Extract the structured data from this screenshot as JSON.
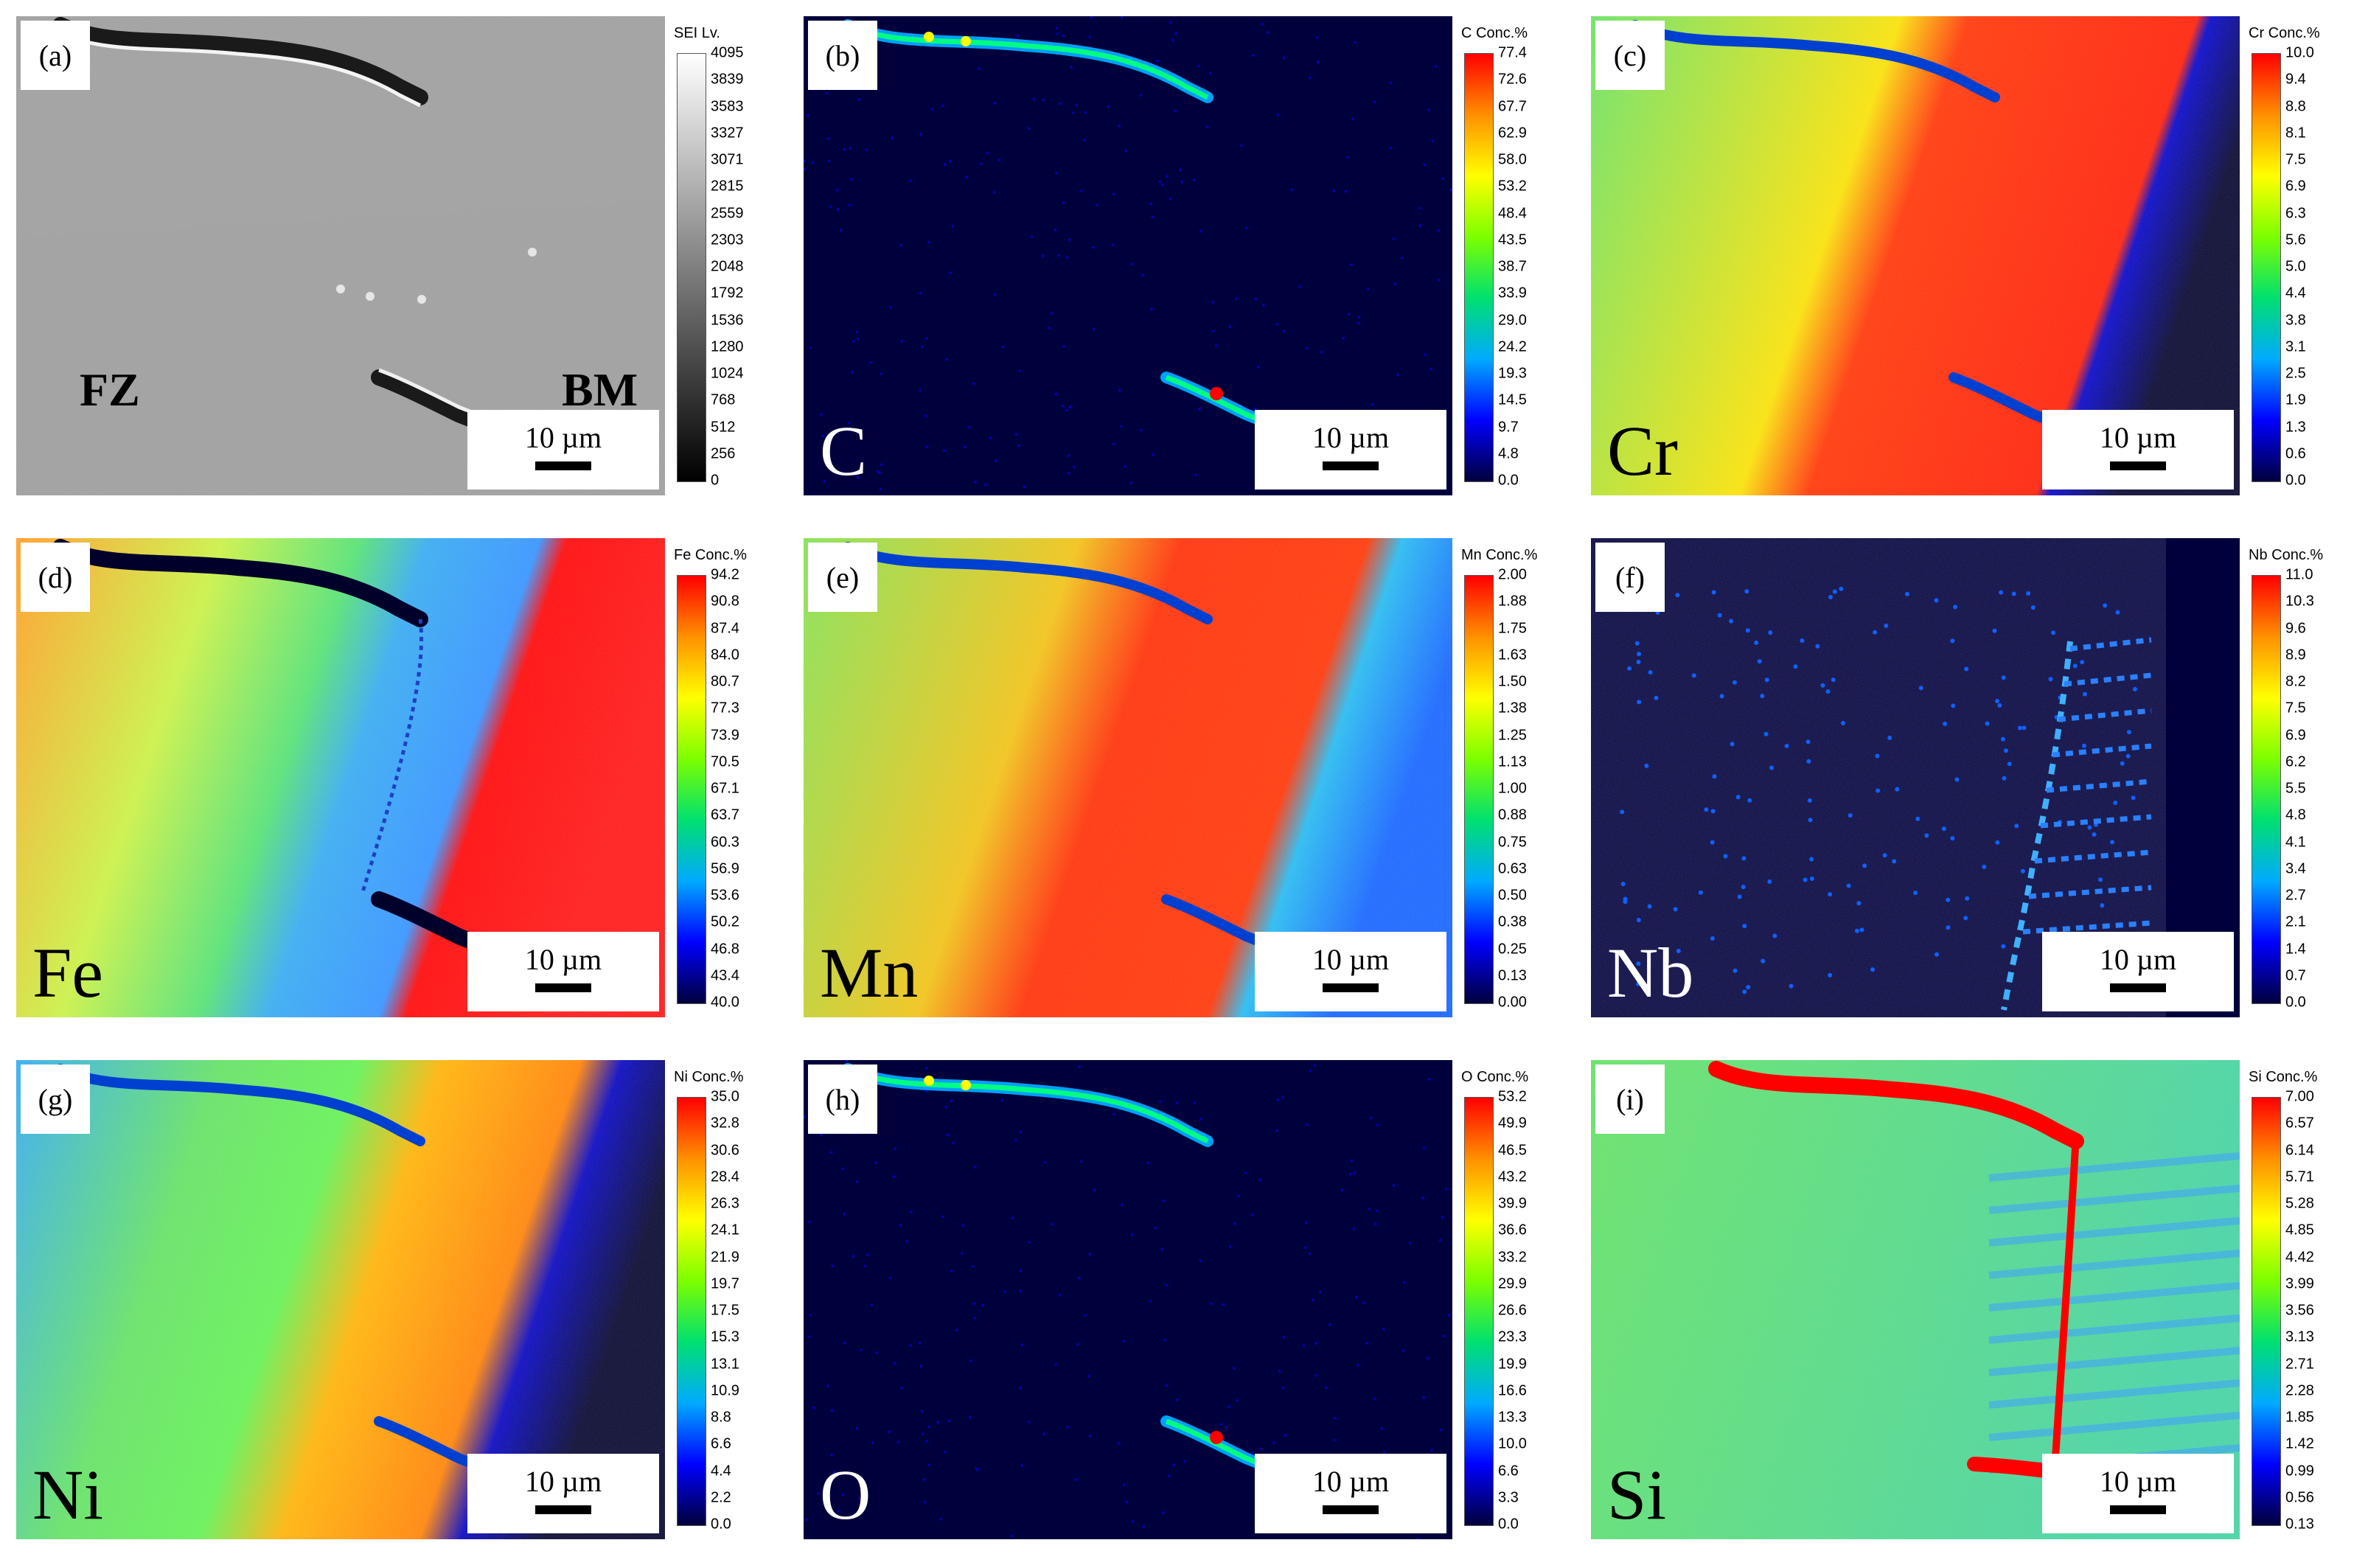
{
  "scale_label": "10 µm",
  "colormap": [
    "#00003c",
    "#0000ff",
    "#00aaff",
    "#00e070",
    "#7cff00",
    "#ffff00",
    "#ff9000",
    "#ff0000"
  ],
  "panels": [
    {
      "tag": "(a)",
      "element": "",
      "zones": [
        "FZ",
        "BM"
      ],
      "legend_title": "SEI  Lv.",
      "ticks": [
        "4095",
        "3839",
        "3583",
        "3327",
        "3071",
        "2815",
        "2559",
        "2303",
        "2048",
        "1792",
        "1536",
        "1280",
        "1024",
        "768",
        "512",
        "256",
        "0"
      ]
    },
    {
      "tag": "(b)",
      "element": "C",
      "legend_title": "C  Conc.%",
      "ticks": [
        "77.4",
        "72.6",
        "67.7",
        "62.9",
        "58.0",
        "53.2",
        "48.4",
        "43.5",
        "38.7",
        "33.9",
        "29.0",
        "24.2",
        "19.3",
        "14.5",
        "9.7",
        "4.8",
        "0.0"
      ]
    },
    {
      "tag": "(c)",
      "element": "Cr",
      "legend_title": "Cr  Conc.%",
      "ticks": [
        "10.0",
        "9.4",
        "8.8",
        "8.1",
        "7.5",
        "6.9",
        "6.3",
        "5.6",
        "5.0",
        "4.4",
        "3.8",
        "3.1",
        "2.5",
        "1.9",
        "1.3",
        "0.6",
        "0.0"
      ]
    },
    {
      "tag": "(d)",
      "element": "Fe",
      "legend_title": "Fe  Conc.%",
      "ticks": [
        "94.2",
        "90.8",
        "87.4",
        "84.0",
        "80.7",
        "77.3",
        "73.9",
        "70.5",
        "67.1",
        "63.7",
        "60.3",
        "56.9",
        "53.6",
        "50.2",
        "46.8",
        "43.4",
        "40.0"
      ]
    },
    {
      "tag": "(e)",
      "element": "Mn",
      "legend_title": "Mn  Conc.%",
      "ticks": [
        "2.00",
        "1.88",
        "1.75",
        "1.63",
        "1.50",
        "1.38",
        "1.25",
        "1.13",
        "1.00",
        "0.88",
        "0.75",
        "0.63",
        "0.50",
        "0.38",
        "0.25",
        "0.13",
        "0.00"
      ]
    },
    {
      "tag": "(f)",
      "element": "Nb",
      "legend_title": "Nb  Conc.%",
      "ticks": [
        "11.0",
        "10.3",
        "9.6",
        "8.9",
        "8.2",
        "7.5",
        "6.9",
        "6.2",
        "5.5",
        "4.8",
        "4.1",
        "3.4",
        "2.7",
        "2.1",
        "1.4",
        "0.7",
        "0.0"
      ]
    },
    {
      "tag": "(g)",
      "element": "Ni",
      "legend_title": "Ni  Conc.%",
      "ticks": [
        "35.0",
        "32.8",
        "30.6",
        "28.4",
        "26.3",
        "24.1",
        "21.9",
        "19.7",
        "17.5",
        "15.3",
        "13.1",
        "10.9",
        "8.8",
        "6.6",
        "4.4",
        "2.2",
        "0.0"
      ]
    },
    {
      "tag": "(h)",
      "element": "O",
      "legend_title": "O  Conc.%",
      "ticks": [
        "53.2",
        "49.9",
        "46.5",
        "43.2",
        "39.9",
        "36.6",
        "33.2",
        "29.9",
        "26.6",
        "23.3",
        "19.9",
        "16.6",
        "13.3",
        "10.0",
        "6.6",
        "3.3",
        "0.0"
      ]
    },
    {
      "tag": "(i)",
      "element": "Si",
      "legend_title": "Si  Conc.%",
      "ticks": [
        "7.00",
        "6.57",
        "6.14",
        "5.71",
        "5.28",
        "4.85",
        "4.42",
        "3.99",
        "3.56",
        "3.13",
        "2.71",
        "2.28",
        "1.85",
        "1.42",
        "0.99",
        "0.56",
        "0.13"
      ]
    }
  ]
}
